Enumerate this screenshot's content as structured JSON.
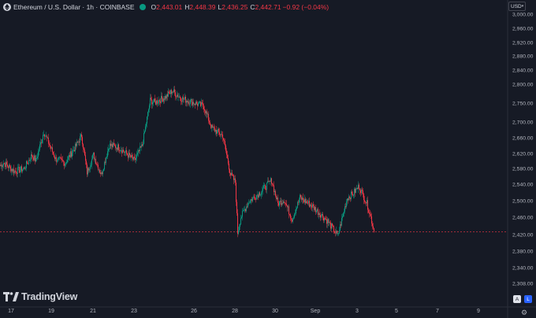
{
  "legend": {
    "symbol": "Ethereum / U.S. Dollar · 1h · COINBASE",
    "open_label": "O",
    "open": "2,443.01",
    "high_label": "H",
    "high": "2,448.39",
    "low_label": "L",
    "low": "2,436.25",
    "close_label": "C",
    "close": "2,442.71",
    "change": "−0.92 (−0.04%)"
  },
  "currency": {
    "label": "USD"
  },
  "branding": {
    "wordmark": "TradingView"
  },
  "scale_buttons": {
    "auto": "A",
    "log": "L"
  },
  "colors": {
    "background": "#161a25",
    "up": "#089981",
    "down": "#f23645",
    "text": "#b2b5be"
  },
  "chart_data": {
    "type": "candlestick",
    "title": "Ethereum / U.S. Dollar · 1h · COINBASE",
    "ylim": [
      2290,
      3010
    ],
    "y_ticks": [
      "3,000.00",
      "2,960.00",
      "2,920.00",
      "2,880.00",
      "2,840.00",
      "2,800.00",
      "2,750.00",
      "2,700.00",
      "2,660.00",
      "2,620.00",
      "2,580.00",
      "2,540.00",
      "2,500.00",
      "2,460.00",
      "2,420.00",
      "2,380.00",
      "2,340.00",
      "2,308.00"
    ],
    "x_ticks": [
      "17",
      "19",
      "21",
      "23",
      "26",
      "28",
      "30",
      "Sep",
      "3",
      "5",
      "7",
      "9"
    ],
    "last_price": 2442.71,
    "price_line": "dashed",
    "anchors": [
      {
        "t": 0,
        "p": 2612
      },
      {
        "t": 4,
        "p": 2620
      },
      {
        "t": 18,
        "p": 2598
      },
      {
        "t": 30,
        "p": 2605
      },
      {
        "t": 40,
        "p": 2640
      },
      {
        "t": 45,
        "p": 2625
      },
      {
        "t": 55,
        "p": 2700
      },
      {
        "t": 70,
        "p": 2630
      },
      {
        "t": 82,
        "p": 2620
      },
      {
        "t": 95,
        "p": 2660
      },
      {
        "t": 103,
        "p": 2690
      },
      {
        "t": 110,
        "p": 2595
      },
      {
        "t": 118,
        "p": 2640
      },
      {
        "t": 128,
        "p": 2590
      },
      {
        "t": 138,
        "p": 2665
      },
      {
        "t": 150,
        "p": 2660
      },
      {
        "t": 162,
        "p": 2640
      },
      {
        "t": 170,
        "p": 2625
      },
      {
        "t": 180,
        "p": 2665
      },
      {
        "t": 190,
        "p": 2780
      },
      {
        "t": 196,
        "p": 2775
      },
      {
        "t": 210,
        "p": 2790
      },
      {
        "t": 218,
        "p": 2805
      },
      {
        "t": 230,
        "p": 2785
      },
      {
        "t": 245,
        "p": 2775
      },
      {
        "t": 258,
        "p": 2765
      },
      {
        "t": 268,
        "p": 2710
      },
      {
        "t": 282,
        "p": 2690
      },
      {
        "t": 292,
        "p": 2590
      },
      {
        "t": 298,
        "p": 2570
      },
      {
        "t": 301,
        "p": 2440
      },
      {
        "t": 305,
        "p": 2480
      },
      {
        "t": 315,
        "p": 2520
      },
      {
        "t": 330,
        "p": 2545
      },
      {
        "t": 344,
        "p": 2575
      },
      {
        "t": 352,
        "p": 2515
      },
      {
        "t": 360,
        "p": 2525
      },
      {
        "t": 370,
        "p": 2475
      },
      {
        "t": 380,
        "p": 2530
      },
      {
        "t": 395,
        "p": 2510
      },
      {
        "t": 405,
        "p": 2490
      },
      {
        "t": 415,
        "p": 2470
      },
      {
        "t": 428,
        "p": 2432
      },
      {
        "t": 440,
        "p": 2530
      },
      {
        "t": 447,
        "p": 2540
      },
      {
        "t": 455,
        "p": 2560
      },
      {
        "t": 465,
        "p": 2515
      },
      {
        "t": 470,
        "p": 2480
      },
      {
        "t": 474,
        "p": 2443
      }
    ]
  }
}
